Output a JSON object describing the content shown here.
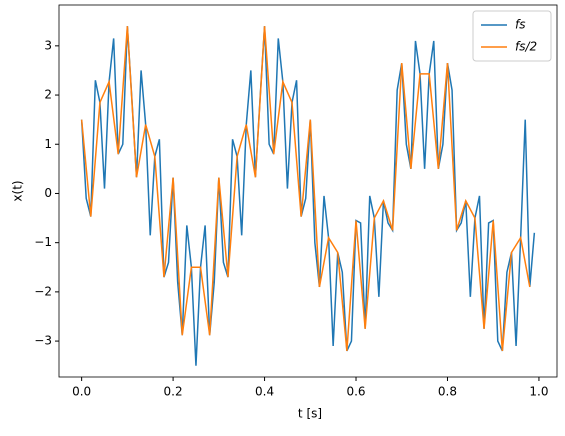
{
  "chart_data": {
    "type": "line",
    "xlabel": "t [s]",
    "ylabel": "x(t)",
    "series": [
      {
        "name": "fs",
        "color": "#1f77b4",
        "x": [
          0,
          0.01,
          0.02,
          0.03,
          0.04,
          0.05,
          0.06,
          0.07,
          0.08,
          0.09,
          0.1,
          0.11,
          0.12,
          0.13,
          0.14,
          0.15,
          0.16,
          0.17,
          0.18,
          0.19,
          0.2,
          0.21,
          0.22,
          0.23,
          0.24,
          0.25,
          0.26,
          0.27,
          0.28,
          0.29,
          0.3,
          0.31,
          0.32,
          0.33,
          0.34,
          0.35,
          0.36,
          0.37,
          0.38,
          0.39,
          0.4,
          0.41,
          0.42,
          0.43,
          0.44,
          0.45,
          0.46,
          0.47,
          0.48,
          0.49,
          0.5,
          0.51,
          0.52,
          0.53,
          0.54,
          0.55,
          0.56,
          0.57,
          0.58,
          0.59,
          0.6,
          0.61,
          0.62,
          0.63,
          0.64,
          0.65,
          0.66,
          0.67,
          0.68,
          0.69,
          0.7,
          0.71,
          0.72,
          0.73,
          0.74,
          0.75,
          0.76,
          0.77,
          0.78,
          0.79,
          0.8,
          0.81,
          0.82,
          0.83,
          0.84,
          0.85,
          0.86,
          0.87,
          0.88,
          0.89,
          0.9,
          0.91,
          0.92,
          0.93,
          0.94,
          0.95,
          0.96,
          0.97,
          0.98,
          0.99
        ],
        "values": [
          1.5,
          -0.1,
          -0.47,
          2.3,
          1.85,
          0.1,
          2.27,
          3.15,
          0.8,
          1.0,
          3.4,
          1.9,
          0.33,
          2.5,
          1.4,
          -0.85,
          0.75,
          1.1,
          -1.7,
          -1.4,
          0.32,
          -1.8,
          -2.88,
          -0.65,
          -1.5,
          -3.5,
          -1.5,
          -0.65,
          -2.88,
          -1.8,
          0.32,
          -1.4,
          -1.7,
          1.1,
          0.75,
          -0.85,
          1.4,
          2.5,
          0.33,
          1.9,
          3.4,
          1.0,
          0.8,
          3.15,
          2.27,
          0.1,
          1.85,
          2.3,
          -0.47,
          -0.1,
          1.5,
          -1.0,
          -1.9,
          -0.05,
          -0.9,
          -3.1,
          -1.2,
          -1.6,
          -3.2,
          -3.0,
          -0.55,
          -0.6,
          -2.75,
          -0.05,
          -0.5,
          -2.1,
          -0.15,
          -0.6,
          -0.75,
          2.1,
          2.65,
          1.0,
          0.5,
          3.1,
          2.43,
          0.5,
          2.43,
          3.1,
          0.5,
          1.0,
          2.65,
          2.1,
          -0.75,
          -0.6,
          -0.15,
          -2.1,
          -0.5,
          -0.05,
          -2.75,
          -0.6,
          -0.55,
          -3.0,
          -3.2,
          -1.6,
          -1.2,
          -3.1,
          -0.9,
          1.5,
          -1.9,
          -0.8
        ]
      },
      {
        "name": "fs/2",
        "color": "#ff7f0e",
        "x": [
          0,
          0.02,
          0.04,
          0.06,
          0.08,
          0.1,
          0.12,
          0.14,
          0.16,
          0.18,
          0.2,
          0.22,
          0.24,
          0.26,
          0.28,
          0.3,
          0.32,
          0.34,
          0.36,
          0.38,
          0.4,
          0.42,
          0.44,
          0.46,
          0.48,
          0.5,
          0.52,
          0.54,
          0.56,
          0.58,
          0.6,
          0.62,
          0.64,
          0.66,
          0.68,
          0.7,
          0.72,
          0.74,
          0.76,
          0.78,
          0.8,
          0.82,
          0.84,
          0.86,
          0.88,
          0.9,
          0.92,
          0.94,
          0.96,
          0.98
        ],
        "values": [
          1.5,
          -0.47,
          1.85,
          2.27,
          0.8,
          3.4,
          0.33,
          1.4,
          0.75,
          -1.7,
          0.32,
          -2.88,
          -1.5,
          -1.5,
          -2.88,
          0.32,
          -1.7,
          0.75,
          1.4,
          0.33,
          3.4,
          0.8,
          2.27,
          1.85,
          -0.47,
          1.5,
          -1.9,
          -0.9,
          -1.2,
          -3.2,
          -0.55,
          -2.75,
          -0.5,
          -0.15,
          -0.75,
          2.65,
          0.5,
          2.43,
          2.43,
          0.5,
          2.65,
          -0.75,
          -0.15,
          -0.5,
          -2.75,
          -0.55,
          -3.2,
          -1.2,
          -0.9,
          -1.9
        ]
      }
    ],
    "xlim": [
      -0.0495,
      1.0395
    ],
    "ylim": [
      -3.73,
      3.83
    ],
    "xticks": [
      {
        "value": 0,
        "label": "0.0"
      },
      0.2,
      0.4,
      0.6,
      0.8,
      {
        "value": 1,
        "label": "1.0"
      }
    ],
    "yticks": [
      {
        "value": -3,
        "label": "−3"
      },
      {
        "value": -2,
        "label": "−2"
      },
      {
        "value": -1,
        "label": "−1"
      },
      0,
      1,
      2,
      3
    ],
    "legend": "upper right",
    "grid": false
  }
}
